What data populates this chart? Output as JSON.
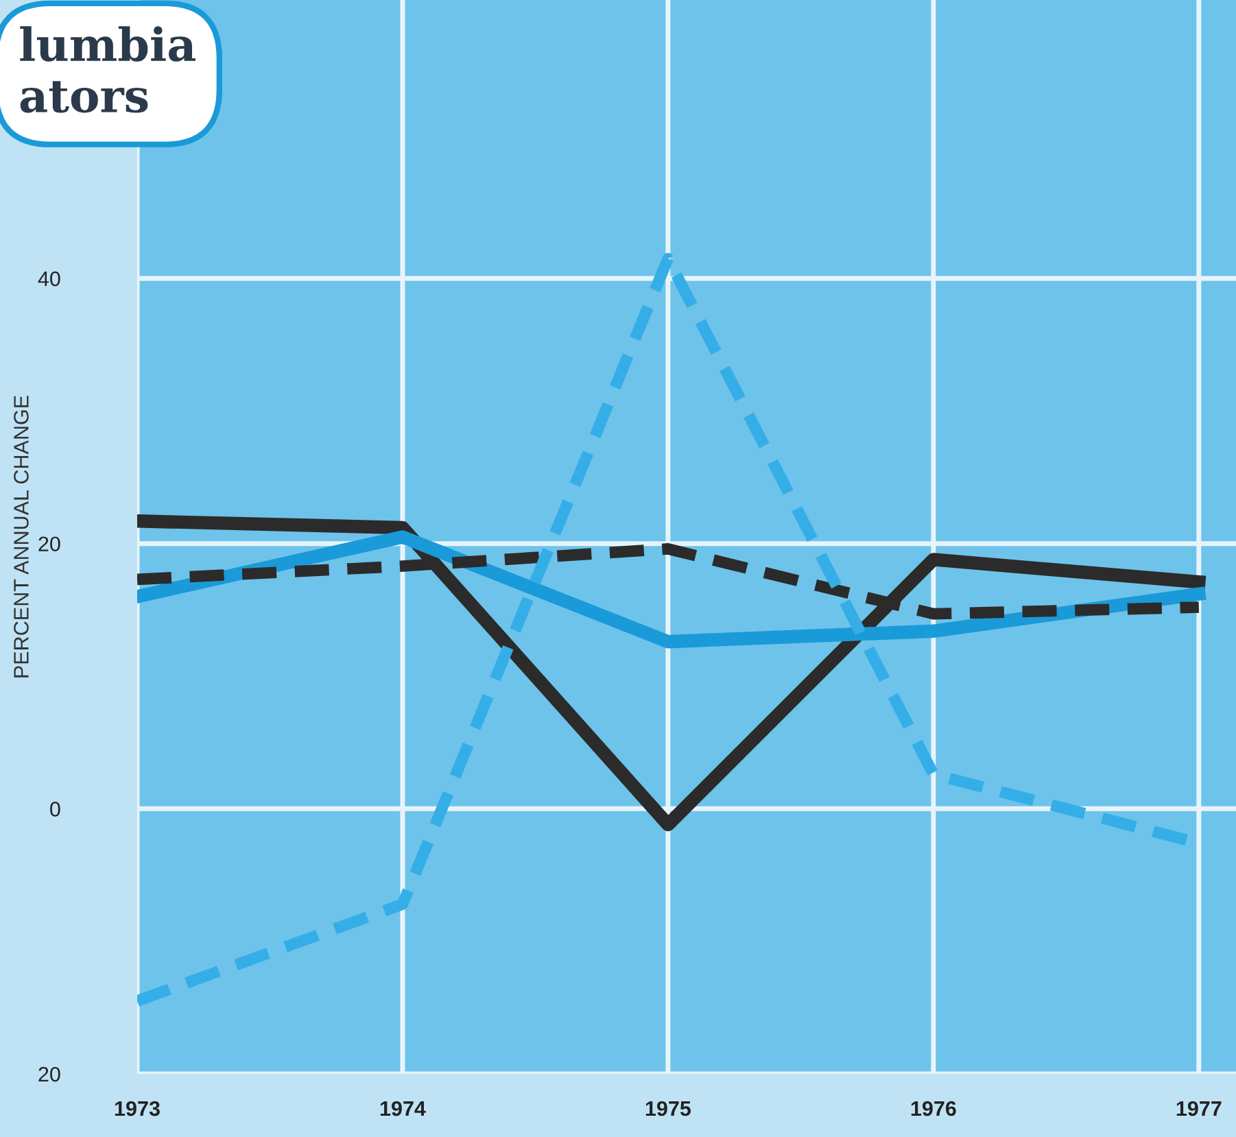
{
  "chart_data": {
    "type": "line",
    "title": "lumbia\nators",
    "ylabel": "PERCENT ANNUAL CHANGE",
    "x": [
      1973,
      1974,
      1975,
      1976,
      1977
    ],
    "xlim": [
      1973,
      1977.14
    ],
    "xticks": [
      1973,
      1974,
      1975,
      1976,
      1977
    ],
    "ylim": [
      -20,
      61
    ],
    "yticks": [
      {
        "value": -20,
        "label": "20"
      },
      0,
      20,
      40
    ],
    "grid": true,
    "legend": false,
    "series": [
      {
        "color": "#2b2b2b",
        "line_style": "solid",
        "values": [
          21.7,
          21.2,
          -1.2,
          18.8,
          17.1
        ]
      },
      {
        "color": "#1a9ad8",
        "line_style": "solid",
        "values": [
          16.0,
          20.5,
          12.6,
          13.4,
          16.2
        ]
      },
      {
        "color": "#2b2b2b",
        "line_style": "dashed",
        "values": [
          17.3,
          18.3,
          19.6,
          14.7,
          15.2
        ]
      },
      {
        "color": "#35aee8",
        "line_style": "dashed",
        "values": [
          -14.5,
          -7.2,
          41.5,
          2.6,
          -2.6
        ]
      }
    ]
  }
}
